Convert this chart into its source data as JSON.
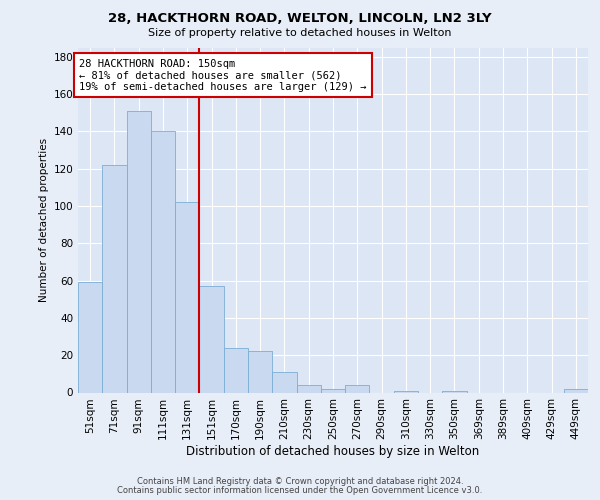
{
  "title1": "28, HACKTHORN ROAD, WELTON, LINCOLN, LN2 3LY",
  "title2": "Size of property relative to detached houses in Welton",
  "xlabel": "Distribution of detached houses by size in Welton",
  "ylabel": "Number of detached properties",
  "bar_labels": [
    "51sqm",
    "71sqm",
    "91sqm",
    "111sqm",
    "131sqm",
    "151sqm",
    "170sqm",
    "190sqm",
    "210sqm",
    "230sqm",
    "250sqm",
    "270sqm",
    "290sqm",
    "310sqm",
    "330sqm",
    "350sqm",
    "369sqm",
    "389sqm",
    "409sqm",
    "429sqm",
    "449sqm"
  ],
  "bar_values": [
    59,
    122,
    151,
    140,
    102,
    57,
    24,
    22,
    11,
    4,
    2,
    4,
    0,
    1,
    0,
    1,
    0,
    0,
    0,
    0,
    2
  ],
  "bar_color": "#c8d9f0",
  "bar_edge_color": "#7aadd4",
  "ref_line_index": 5,
  "ref_line_color": "#cc0000",
  "annotation_title": "28 HACKTHORN ROAD: 150sqm",
  "annotation_line1": "← 81% of detached houses are smaller (562)",
  "annotation_line2": "19% of semi-detached houses are larger (129) →",
  "annotation_box_edge_color": "#cc0000",
  "ylim": [
    0,
    185
  ],
  "yticks": [
    0,
    20,
    40,
    60,
    80,
    100,
    120,
    140,
    160,
    180
  ],
  "footer1": "Contains HM Land Registry data © Crown copyright and database right 2024.",
  "footer2": "Contains public sector information licensed under the Open Government Licence v3.0.",
  "fig_bg_color": "#e8eef7",
  "plot_bg_color": "#dce6f5",
  "grid_color": "#ffffff",
  "title1_fontsize": 9.5,
  "title2_fontsize": 8.0,
  "xlabel_fontsize": 8.5,
  "ylabel_fontsize": 7.5,
  "tick_fontsize": 7.5,
  "footer_fontsize": 6.0
}
